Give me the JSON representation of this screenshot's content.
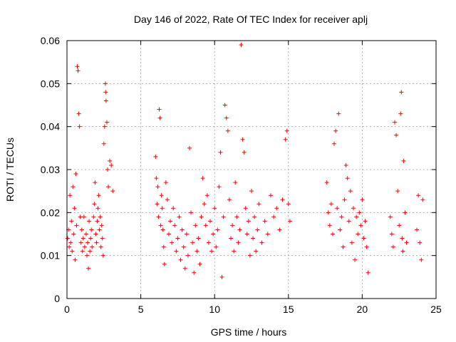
{
  "chart_data": {
    "type": "scatter",
    "title": "Day 146 of 2022, Rate Of TEC Index for receiver aplj",
    "xlabel": "GPS time / hours",
    "ylabel": "ROTI / TECUs",
    "xlim": [
      0,
      25
    ],
    "ylim": [
      0,
      0.06
    ],
    "x_ticks": [
      0,
      5,
      10,
      15,
      20,
      25
    ],
    "x_tick_labels": [
      "0",
      "5",
      "10",
      "15",
      "20",
      "25"
    ],
    "y_ticks": [
      0,
      0.01,
      0.02,
      0.03,
      0.04,
      0.05,
      0.06
    ],
    "y_tick_labels": [
      "0",
      "0.01",
      "0.02",
      "0.03",
      "0.04",
      "0.05",
      "0.06"
    ],
    "grid": true,
    "legend": "none",
    "marker": "+",
    "colors": {
      "series": "#ff0000",
      "grid": "#a0a0a0",
      "axis": "#000000"
    },
    "series": [
      {
        "points": [
          [
            0.05,
            0.014
          ],
          [
            0.1,
            0.016
          ],
          [
            0.15,
            0.012
          ],
          [
            0.2,
            0.024
          ],
          [
            0.25,
            0.013
          ],
          [
            0.3,
            0.018
          ],
          [
            0.35,
            0.011
          ],
          [
            0.4,
            0.026
          ],
          [
            0.45,
            0.015
          ],
          [
            0.5,
            0.021
          ],
          [
            0.55,
            0.009
          ],
          [
            0.6,
            0.029
          ],
          [
            0.65,
            0.017
          ],
          [
            0.7,
            0.054
          ],
          [
            0.75,
            0.053
          ],
          [
            0.8,
            0.043
          ],
          [
            0.85,
            0.04
          ],
          [
            0.9,
            0.019
          ],
          [
            0.95,
            0.013
          ],
          [
            1.0,
            0.016
          ],
          [
            1.05,
            0.011
          ],
          [
            1.1,
            0.014
          ],
          [
            1.15,
            0.019
          ],
          [
            1.2,
            0.012
          ],
          [
            1.3,
            0.015
          ],
          [
            1.35,
            0.01
          ],
          [
            1.4,
            0.013
          ],
          [
            1.45,
            0.007
          ],
          [
            1.5,
            0.018
          ],
          [
            1.55,
            0.011
          ],
          [
            1.6,
            0.014
          ],
          [
            1.65,
            0.016
          ],
          [
            1.7,
            0.012
          ],
          [
            1.8,
            0.019
          ],
          [
            1.85,
            0.022
          ],
          [
            1.9,
            0.027
          ],
          [
            1.95,
            0.015
          ],
          [
            2.0,
            0.013
          ],
          [
            2.05,
            0.018
          ],
          [
            2.1,
            0.021
          ],
          [
            2.15,
            0.024
          ],
          [
            2.2,
            0.016
          ],
          [
            2.25,
            0.019
          ],
          [
            2.3,
            0.012
          ],
          [
            2.35,
            0.017
          ],
          [
            2.4,
            0.014
          ],
          [
            2.45,
            0.01
          ],
          [
            2.5,
            0.036
          ],
          [
            2.55,
            0.04
          ],
          [
            2.6,
            0.05
          ],
          [
            2.62,
            0.048
          ],
          [
            2.65,
            0.046
          ],
          [
            2.7,
            0.041
          ],
          [
            2.75,
            0.03
          ],
          [
            2.8,
            0.026
          ],
          [
            2.9,
            0.032
          ],
          [
            3.0,
            0.031
          ],
          [
            3.1,
            0.025
          ],
          [
            6.0,
            0.033
          ],
          [
            6.05,
            0.028
          ],
          [
            6.1,
            0.022
          ],
          [
            6.15,
            0.026
          ],
          [
            6.2,
            0.019
          ],
          [
            6.25,
            0.044
          ],
          [
            6.3,
            0.042
          ],
          [
            6.35,
            0.017
          ],
          [
            6.4,
            0.024
          ],
          [
            6.45,
            0.021
          ],
          [
            6.5,
            0.016
          ],
          [
            6.55,
            0.012
          ],
          [
            6.6,
            0.008
          ],
          [
            6.7,
            0.027
          ],
          [
            6.8,
            0.023
          ],
          [
            6.9,
            0.015
          ],
          [
            7.0,
            0.018
          ],
          [
            7.1,
            0.013
          ],
          [
            7.2,
            0.021
          ],
          [
            7.3,
            0.017
          ],
          [
            7.4,
            0.011
          ],
          [
            7.5,
            0.014
          ],
          [
            7.6,
            0.019
          ],
          [
            7.7,
            0.009
          ],
          [
            7.8,
            0.016
          ],
          [
            7.9,
            0.012
          ],
          [
            8.0,
            0.007
          ],
          [
            8.1,
            0.015
          ],
          [
            8.2,
            0.01
          ],
          [
            8.3,
            0.035
          ],
          [
            8.4,
            0.02
          ],
          [
            8.5,
            0.013
          ],
          [
            8.6,
            0.006
          ],
          [
            8.7,
            0.017
          ],
          [
            8.8,
            0.011
          ],
          [
            8.9,
            0.014
          ],
          [
            9.0,
            0.008
          ],
          [
            9.1,
            0.019
          ],
          [
            9.2,
            0.028
          ],
          [
            9.3,
            0.022
          ],
          [
            9.4,
            0.017
          ],
          [
            9.5,
            0.024
          ],
          [
            9.6,
            0.013
          ],
          [
            9.7,
            0.018
          ],
          [
            9.8,
            0.011
          ],
          [
            9.9,
            0.015
          ],
          [
            10.0,
            0.021
          ],
          [
            10.1,
            0.012
          ],
          [
            10.2,
            0.016
          ],
          [
            10.3,
            0.026
          ],
          [
            10.4,
            0.034
          ],
          [
            10.5,
            0.005
          ],
          [
            10.6,
            0.019
          ],
          [
            10.7,
            0.045
          ],
          [
            10.8,
            0.042
          ],
          [
            10.9,
            0.039
          ],
          [
            11.0,
            0.023
          ],
          [
            11.1,
            0.014
          ],
          [
            11.2,
            0.017
          ],
          [
            11.3,
            0.011
          ],
          [
            11.4,
            0.027
          ],
          [
            11.5,
            0.019
          ],
          [
            11.6,
            0.013
          ],
          [
            11.7,
            0.016
          ],
          [
            11.8,
            0.059
          ],
          [
            11.9,
            0.037
          ],
          [
            12.0,
            0.034
          ],
          [
            12.1,
            0.021
          ],
          [
            12.2,
            0.015
          ],
          [
            12.3,
            0.018
          ],
          [
            12.4,
            0.01
          ],
          [
            12.5,
            0.025
          ],
          [
            12.6,
            0.014
          ],
          [
            12.7,
            0.019
          ],
          [
            12.8,
            0.011
          ],
          [
            12.9,
            0.016
          ],
          [
            13.0,
            0.022
          ],
          [
            13.2,
            0.013
          ],
          [
            13.4,
            0.018
          ],
          [
            13.6,
            0.015
          ],
          [
            13.8,
            0.024
          ],
          [
            14.0,
            0.019
          ],
          [
            14.2,
            0.021
          ],
          [
            14.4,
            0.016
          ],
          [
            14.6,
            0.023
          ],
          [
            14.8,
            0.037
          ],
          [
            14.9,
            0.039
          ],
          [
            15.0,
            0.022
          ],
          [
            15.1,
            0.018
          ],
          [
            17.6,
            0.027
          ],
          [
            17.7,
            0.02
          ],
          [
            17.8,
            0.017
          ],
          [
            17.9,
            0.022
          ],
          [
            18.0,
            0.015
          ],
          [
            18.1,
            0.036
          ],
          [
            18.2,
            0.039
          ],
          [
            18.3,
            0.021
          ],
          [
            18.4,
            0.043
          ],
          [
            18.5,
            0.016
          ],
          [
            18.6,
            0.019
          ],
          [
            18.7,
            0.012
          ],
          [
            18.8,
            0.023
          ],
          [
            18.9,
            0.031
          ],
          [
            19.0,
            0.028
          ],
          [
            19.1,
            0.018
          ],
          [
            19.2,
            0.025
          ],
          [
            19.3,
            0.013
          ],
          [
            19.4,
            0.021
          ],
          [
            19.5,
            0.009
          ],
          [
            19.6,
            0.019
          ],
          [
            19.7,
            0.015
          ],
          [
            19.8,
            0.02
          ],
          [
            19.9,
            0.017
          ],
          [
            20.0,
            0.023
          ],
          [
            20.1,
            0.014
          ],
          [
            20.2,
            0.018
          ],
          [
            20.3,
            0.012
          ],
          [
            20.4,
            0.006
          ],
          [
            21.9,
            0.019
          ],
          [
            22.0,
            0.015
          ],
          [
            22.1,
            0.012
          ],
          [
            22.2,
            0.041
          ],
          [
            22.3,
            0.038
          ],
          [
            22.4,
            0.025
          ],
          [
            22.5,
            0.017
          ],
          [
            22.6,
            0.043
          ],
          [
            22.65,
            0.048
          ],
          [
            22.7,
            0.014
          ],
          [
            22.75,
            0.011
          ],
          [
            22.8,
            0.032
          ],
          [
            22.9,
            0.02
          ],
          [
            23.0,
            0.013
          ],
          [
            23.7,
            0.016
          ],
          [
            23.8,
            0.024
          ],
          [
            23.9,
            0.013
          ],
          [
            24.0,
            0.009
          ],
          [
            24.1,
            0.023
          ]
        ]
      }
    ]
  }
}
